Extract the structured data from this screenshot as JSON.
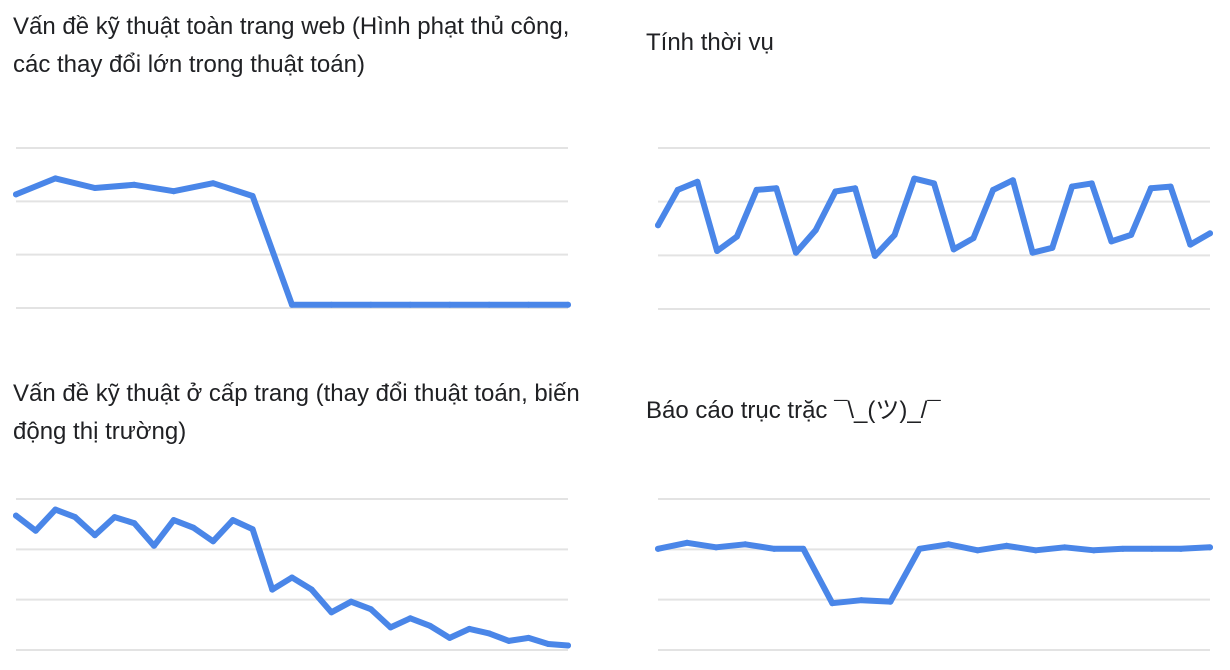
{
  "accent_color": "#4a86e8",
  "chart_data": [
    {
      "type": "line",
      "title": "Vấn đề kỹ thuật toàn trang web (Hình phạt thủ công, các thay đổi lớn trong thuật toán)",
      "xlabel": "",
      "ylabel": "",
      "grid": true,
      "ylim": [
        0,
        100
      ],
      "x": [
        1,
        2,
        3,
        4,
        5,
        6,
        7,
        8,
        9,
        10,
        11,
        12,
        13,
        14,
        15
      ],
      "values": [
        71,
        81,
        75,
        77,
        73,
        78,
        70,
        2,
        2,
        2,
        2,
        2,
        2,
        2,
        2
      ]
    },
    {
      "type": "line",
      "title": "Tính thời vụ",
      "xlabel": "",
      "ylabel": "",
      "grid": true,
      "ylim": [
        0,
        100
      ],
      "x": [
        1,
        2,
        3,
        4,
        5,
        6,
        7,
        8,
        9,
        10,
        11,
        12,
        13,
        14,
        15,
        16,
        17,
        18,
        19,
        20,
        21,
        22,
        23,
        24,
        25,
        26,
        27,
        28,
        29
      ],
      "values": [
        52,
        74,
        79,
        36,
        45,
        74,
        75,
        35,
        49,
        73,
        75,
        33,
        46,
        81,
        78,
        37,
        44,
        74,
        80,
        35,
        38,
        76,
        78,
        42,
        46,
        75,
        76,
        40,
        47
      ]
    },
    {
      "type": "line",
      "title": "Vấn đề kỹ thuật ở cấp trang (thay đổi thuật toán, biến động thị trường)",
      "xlabel": "",
      "ylabel": "",
      "grid": true,
      "ylim": [
        0,
        100
      ],
      "x": [
        1,
        2,
        3,
        4,
        5,
        6,
        7,
        8,
        9,
        10,
        11,
        12,
        13,
        14,
        15,
        16,
        17,
        18,
        19,
        20,
        21,
        22,
        23,
        24,
        25,
        26,
        27,
        28,
        29
      ],
      "values": [
        89,
        79,
        93,
        88,
        76,
        88,
        84,
        69,
        86,
        81,
        72,
        86,
        80,
        40,
        48,
        40,
        25,
        32,
        27,
        15,
        21,
        16,
        8,
        14,
        11,
        6,
        8,
        4,
        3
      ]
    },
    {
      "type": "line",
      "title": "Báo cáo trục trặc ¯\\_(ツ)_/¯",
      "xlabel": "",
      "ylabel": "",
      "grid": true,
      "ylim": [
        0,
        100
      ],
      "x": [
        1,
        2,
        3,
        4,
        5,
        6,
        7,
        8,
        9,
        10,
        11,
        12,
        13,
        14,
        15,
        16,
        17,
        18,
        19,
        20
      ],
      "values": [
        67,
        71,
        68,
        70,
        67,
        67,
        31,
        33,
        32,
        67,
        70,
        66,
        69,
        66,
        68,
        66,
        67,
        67,
        67,
        68
      ]
    }
  ]
}
